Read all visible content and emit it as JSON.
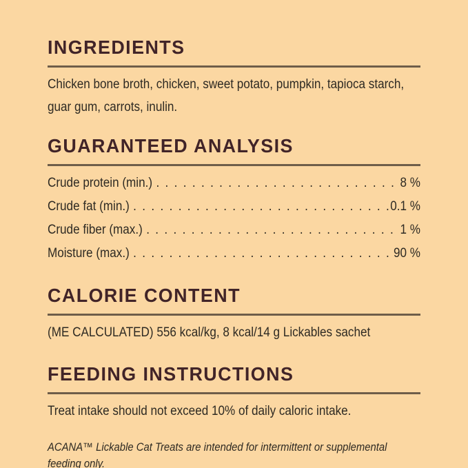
{
  "page": {
    "background_color": "#fbd7a2",
    "heading_color": "#412428",
    "body_color": "#2e2a23",
    "rule_color": "#6e5d49"
  },
  "sections": {
    "ingredients": {
      "heading": "INGREDIENTS",
      "lines": [
        "Chicken bone broth, chicken, sweet potato, pumpkin, tapioca starch,",
        "guar gum, carrots, inulin."
      ]
    },
    "guaranteed_analysis": {
      "heading": "GUARANTEED ANALYSIS",
      "rows": [
        {
          "label": "Crude protein (min.)",
          "value": "8 %"
        },
        {
          "label": "Crude fat (min.)",
          "value": "0.1 %"
        },
        {
          "label": "Crude fiber (max.)",
          "value": "1 %"
        },
        {
          "label": "Moisture (max.)",
          "value": "90 %"
        }
      ]
    },
    "calorie_content": {
      "heading": "CALORIE CONTENT",
      "body": "(ME CALCULATED) 556 kcal/kg, 8 kcal/14 g Lickables sachet"
    },
    "feeding_instructions": {
      "heading": "FEEDING INSTRUCTIONS",
      "body": "Treat intake should not exceed 10% of daily caloric intake.",
      "footnote": "ACANA™ Lickable Cat Treats are intended for intermittent or supplemental feeding only."
    }
  }
}
